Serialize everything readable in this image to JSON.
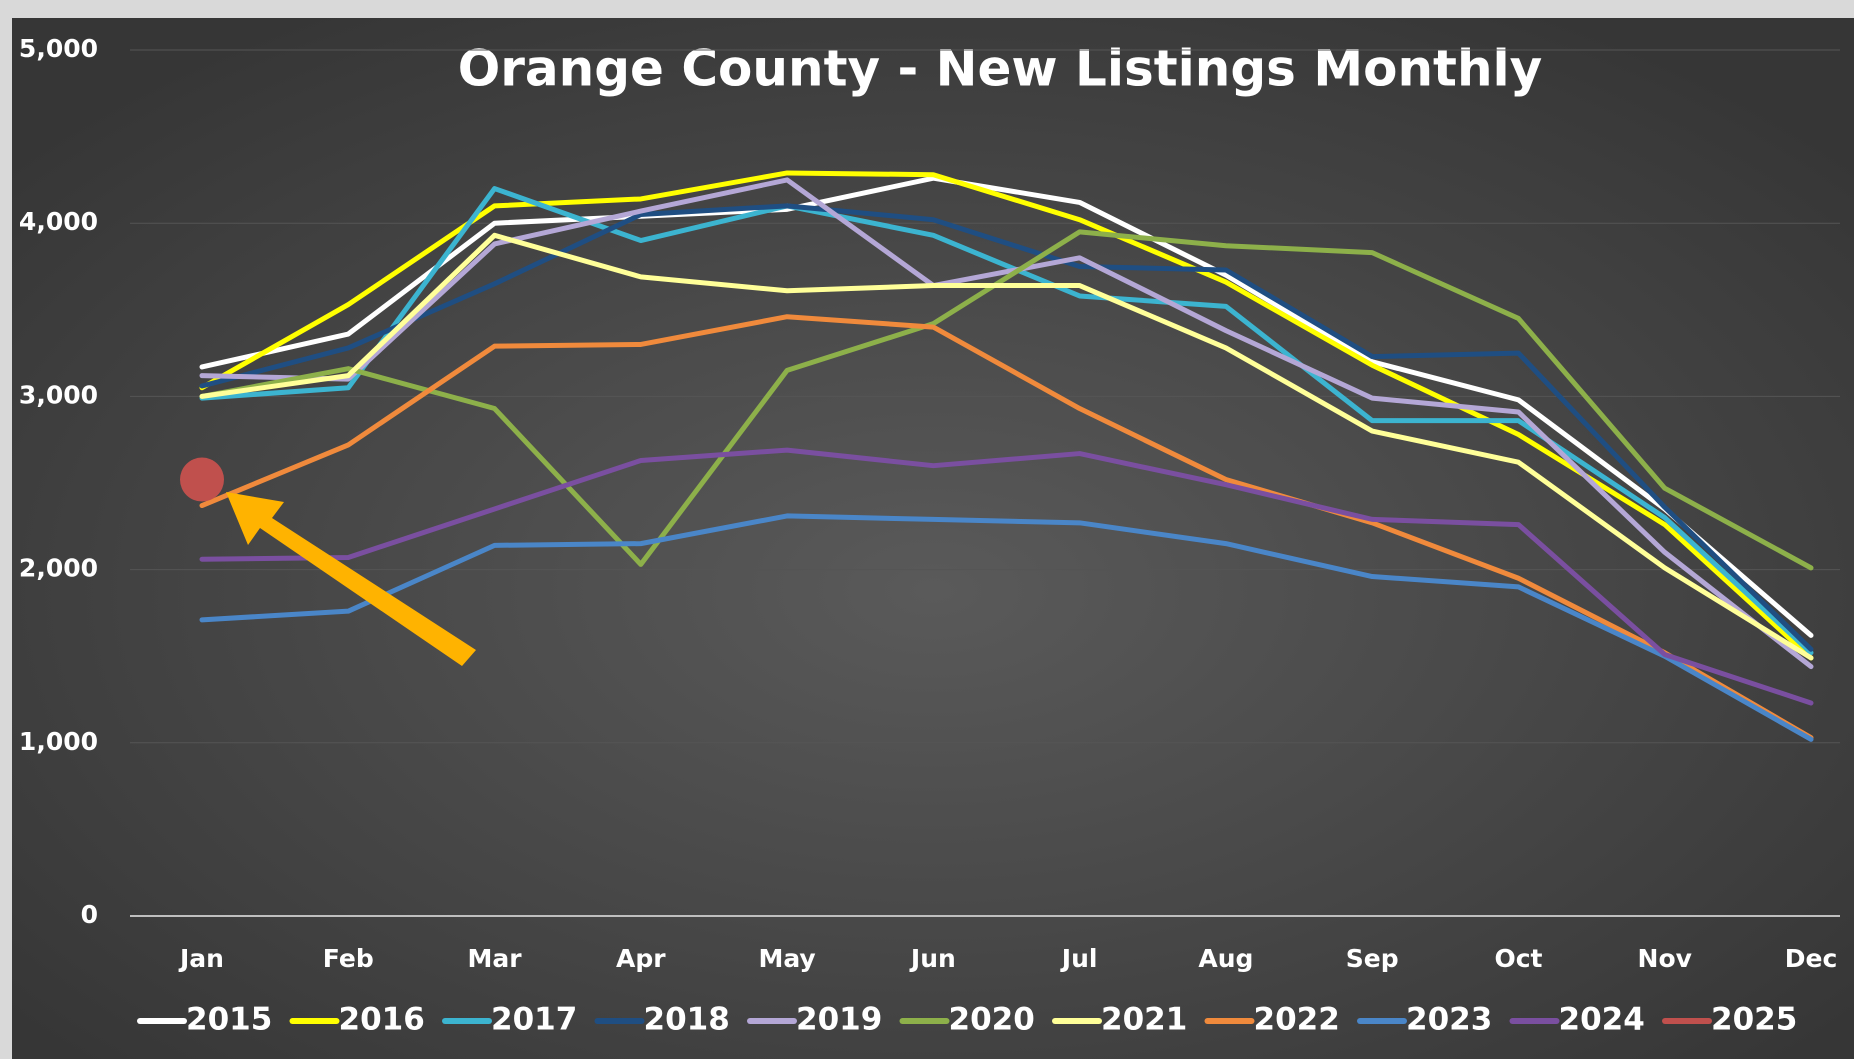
{
  "chart_data": {
    "type": "line",
    "title": "Orange County - New Listings Monthly",
    "categories": [
      "Jan",
      "Feb",
      "Mar",
      "Apr",
      "May",
      "Jun",
      "Jul",
      "Aug",
      "Sep",
      "Oct",
      "Nov",
      "Dec"
    ],
    "ylim": [
      0,
      5000
    ],
    "yticks": [
      0,
      {
        "value": 1000,
        "label": "1,000"
      },
      {
        "value": 2000,
        "label": "2,000"
      },
      {
        "value": 3000,
        "label": "3,000"
      },
      {
        "value": 4000,
        "label": "4,000"
      },
      {
        "value": 5000,
        "label": "5,000"
      }
    ],
    "grid": true,
    "legend": "bottom",
    "series": [
      {
        "name": "2015",
        "color": "#ffffff",
        "values": [
          3170,
          3360,
          4000,
          4040,
          4080,
          4260,
          4120,
          3700,
          3200,
          2980,
          2350,
          1620
        ]
      },
      {
        "name": "2016",
        "color": "#ffff00",
        "values": [
          3050,
          3530,
          4100,
          4140,
          4290,
          4280,
          4020,
          3660,
          3180,
          2780,
          2260,
          1490
        ]
      },
      {
        "name": "2017",
        "color": "#3cb4d0",
        "values": [
          2990,
          3050,
          4200,
          3900,
          4100,
          3930,
          3580,
          3520,
          2860,
          2860,
          2300,
          1520
        ]
      },
      {
        "name": "2018",
        "color": "#1f4e82",
        "values": [
          3060,
          3280,
          3650,
          4050,
          4100,
          4020,
          3750,
          3730,
          3230,
          3250,
          2360,
          1540
        ]
      },
      {
        "name": "2019",
        "color": "#b4a7d6",
        "values": [
          3120,
          3100,
          3880,
          4070,
          4250,
          3640,
          3800,
          3380,
          2990,
          2910,
          2100,
          1440
        ]
      },
      {
        "name": "2020",
        "color": "#8db04a",
        "values": [
          3000,
          3160,
          2930,
          2030,
          3150,
          3420,
          3950,
          3870,
          3830,
          3450,
          2470,
          2010
        ]
      },
      {
        "name": "2021",
        "color": "#ffff99",
        "values": [
          3000,
          3120,
          3930,
          3690,
          3610,
          3640,
          3640,
          3280,
          2800,
          2620,
          2010,
          1490
        ]
      },
      {
        "name": "2022",
        "color": "#f08a3c",
        "values": [
          2370,
          2720,
          3290,
          3300,
          3460,
          3400,
          2930,
          2520,
          2270,
          1950,
          1520,
          1030
        ]
      },
      {
        "name": "2023",
        "color": "#4a86c8",
        "values": [
          1710,
          1760,
          2140,
          2150,
          2310,
          2290,
          2270,
          2150,
          1960,
          1900,
          1500,
          1020
        ]
      },
      {
        "name": "2024",
        "color": "#7a4fa0",
        "values": [
          2060,
          2070,
          2350,
          2630,
          2690,
          2600,
          2670,
          2490,
          2290,
          2260,
          1510,
          1230
        ]
      },
      {
        "name": "2025",
        "color": "#c0504d",
        "values": [
          2520,
          null,
          null,
          null,
          null,
          null,
          null,
          null,
          null,
          null,
          null,
          null
        ]
      }
    ]
  }
}
